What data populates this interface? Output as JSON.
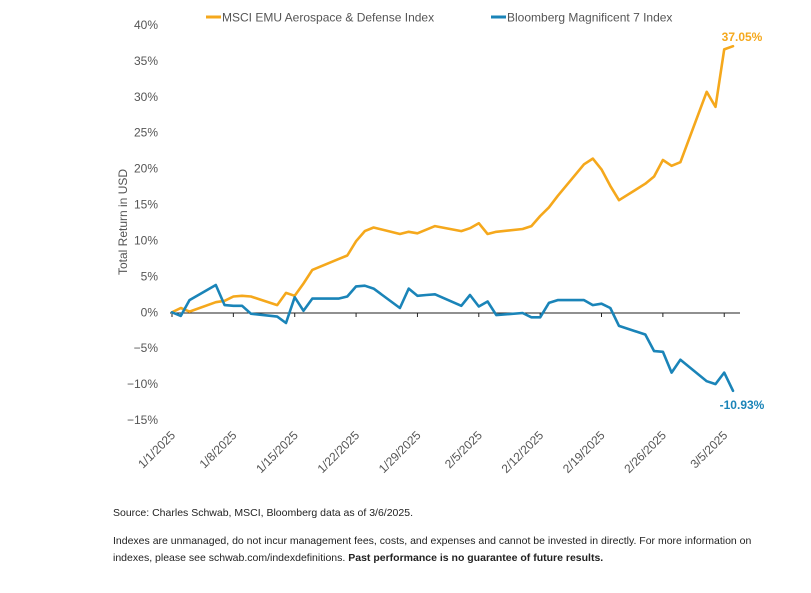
{
  "chart_data": {
    "type": "line",
    "ylabel": "Total Return in USD",
    "ylim": [
      -15,
      40
    ],
    "yticks": [
      40,
      35,
      30,
      25,
      20,
      15,
      10,
      5,
      0,
      -5,
      -10,
      -15
    ],
    "ytick_labels": [
      "40%",
      "35%",
      "30%",
      "25%",
      "20%",
      "15%",
      "10%",
      "5%",
      "0%",
      "−5%",
      "−10%",
      "−15%"
    ],
    "xlim": [
      "2025-01-01",
      "2025-03-06"
    ],
    "xticks": [
      "2025-01-01",
      "2025-01-08",
      "2025-01-15",
      "2025-01-22",
      "2025-01-29",
      "2025-02-05",
      "2025-02-12",
      "2025-02-19",
      "2025-02-26",
      "2025-03-05"
    ],
    "xtick_labels": [
      "1/1/2025",
      "1/8/2025",
      "1/15/2025",
      "1/22/2025",
      "1/29/2025",
      "2/5/2025",
      "2/12/2025",
      "2/19/2025",
      "2/26/2025",
      "3/5/2025"
    ],
    "grid": false,
    "legend_position": "top",
    "series": [
      {
        "name": "MSCI EMU Aerospace & Defense Index",
        "color": "#f5a81c",
        "end_label": "37.05%",
        "points": [
          [
            "2025-01-01",
            0
          ],
          [
            "2025-01-02",
            0.6
          ],
          [
            "2025-01-03",
            0.1
          ],
          [
            "2025-01-06",
            1.4
          ],
          [
            "2025-01-07",
            1.6
          ],
          [
            "2025-01-08",
            2.2
          ],
          [
            "2025-01-09",
            2.3
          ],
          [
            "2025-01-10",
            2.2
          ],
          [
            "2025-01-13",
            1.0
          ],
          [
            "2025-01-14",
            2.7
          ],
          [
            "2025-01-15",
            2.3
          ],
          [
            "2025-01-16",
            4.0
          ],
          [
            "2025-01-17",
            5.9
          ],
          [
            "2025-01-20",
            7.4
          ],
          [
            "2025-01-21",
            7.9
          ],
          [
            "2025-01-22",
            9.9
          ],
          [
            "2025-01-23",
            11.3
          ],
          [
            "2025-01-24",
            11.8
          ],
          [
            "2025-01-27",
            10.9
          ],
          [
            "2025-01-28",
            11.2
          ],
          [
            "2025-01-29",
            11.0
          ],
          [
            "2025-01-30",
            11.5
          ],
          [
            "2025-01-31",
            12.0
          ],
          [
            "2025-02-03",
            11.3
          ],
          [
            "2025-02-04",
            11.7
          ],
          [
            "2025-02-05",
            12.4
          ],
          [
            "2025-02-06",
            10.9
          ],
          [
            "2025-02-07",
            11.2
          ],
          [
            "2025-02-10",
            11.6
          ],
          [
            "2025-02-11",
            12.0
          ],
          [
            "2025-02-12",
            13.4
          ],
          [
            "2025-02-13",
            14.6
          ],
          [
            "2025-02-14",
            16.2
          ],
          [
            "2025-02-17",
            20.6
          ],
          [
            "2025-02-18",
            21.4
          ],
          [
            "2025-02-19",
            19.9
          ],
          [
            "2025-02-20",
            17.6
          ],
          [
            "2025-02-21",
            15.6
          ],
          [
            "2025-02-24",
            17.9
          ],
          [
            "2025-02-25",
            18.9
          ],
          [
            "2025-02-26",
            21.2
          ],
          [
            "2025-02-27",
            20.4
          ],
          [
            "2025-02-28",
            20.9
          ],
          [
            "2025-03-03",
            30.7
          ],
          [
            "2025-03-04",
            28.6
          ],
          [
            "2025-03-05",
            36.6
          ],
          [
            "2025-03-06",
            37.05
          ]
        ]
      },
      {
        "name": "Bloomberg Magnificent 7 Index",
        "color": "#1a84b8",
        "end_label": "-10.93%",
        "points": [
          [
            "2025-01-01",
            0
          ],
          [
            "2025-01-02",
            -0.5
          ],
          [
            "2025-01-03",
            1.7
          ],
          [
            "2025-01-06",
            3.8
          ],
          [
            "2025-01-07",
            1.0
          ],
          [
            "2025-01-08",
            0.9
          ],
          [
            "2025-01-09",
            0.9
          ],
          [
            "2025-01-10",
            -0.2
          ],
          [
            "2025-01-13",
            -0.6
          ],
          [
            "2025-01-14",
            -1.5
          ],
          [
            "2025-01-15",
            2.1
          ],
          [
            "2025-01-16",
            0.2
          ],
          [
            "2025-01-17",
            1.9
          ],
          [
            "2025-01-20",
            1.9
          ],
          [
            "2025-01-21",
            2.2
          ],
          [
            "2025-01-22",
            3.6
          ],
          [
            "2025-01-23",
            3.7
          ],
          [
            "2025-01-24",
            3.3
          ],
          [
            "2025-01-27",
            0.6
          ],
          [
            "2025-01-28",
            3.3
          ],
          [
            "2025-01-29",
            2.3
          ],
          [
            "2025-01-30",
            2.4
          ],
          [
            "2025-01-31",
            2.5
          ],
          [
            "2025-02-03",
            0.9
          ],
          [
            "2025-02-04",
            2.4
          ],
          [
            "2025-02-05",
            0.8
          ],
          [
            "2025-02-06",
            1.5
          ],
          [
            "2025-02-07",
            -0.4
          ],
          [
            "2025-02-10",
            -0.1
          ],
          [
            "2025-02-11",
            -0.7
          ],
          [
            "2025-02-12",
            -0.7
          ],
          [
            "2025-02-13",
            1.3
          ],
          [
            "2025-02-14",
            1.7
          ],
          [
            "2025-02-17",
            1.7
          ],
          [
            "2025-02-18",
            1.0
          ],
          [
            "2025-02-19",
            1.2
          ],
          [
            "2025-02-20",
            0.6
          ],
          [
            "2025-02-21",
            -1.9
          ],
          [
            "2025-02-24",
            -3.1
          ],
          [
            "2025-02-25",
            -5.4
          ],
          [
            "2025-02-26",
            -5.5
          ],
          [
            "2025-02-27",
            -8.4
          ],
          [
            "2025-02-28",
            -6.6
          ],
          [
            "2025-03-03",
            -9.6
          ],
          [
            "2025-03-04",
            -10.0
          ],
          [
            "2025-03-05",
            -8.4
          ],
          [
            "2025-03-06",
            -10.93
          ]
        ]
      }
    ]
  },
  "footnotes": {
    "source": "Source: Charles Schwab, MSCI, Bloomberg data as of 3/6/2025.",
    "note": "Indexes are unmanaged, do not incur management fees, costs, and expenses and cannot be invested in directly. For more information on indexes, please see schwab.com/indexdefinitions.",
    "disclaimer": "Past performance is no guarantee of future results."
  }
}
